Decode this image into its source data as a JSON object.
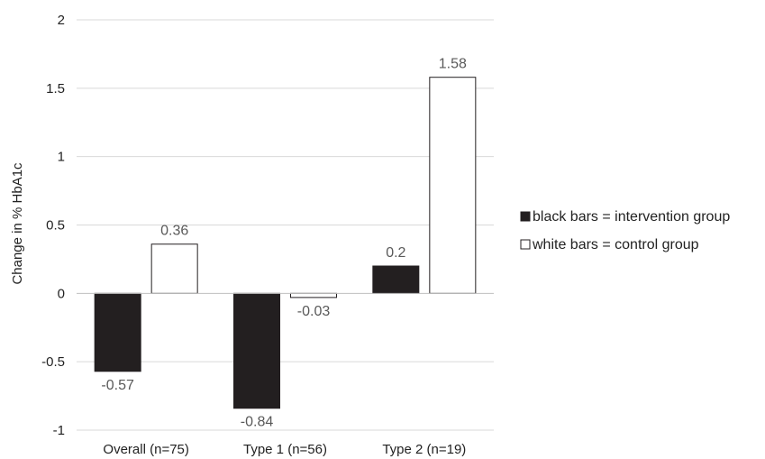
{
  "chart_data": {
    "type": "bar",
    "title": "",
    "xlabel": "",
    "ylabel": "Change in % HbA1c",
    "ylim": [
      -1,
      2
    ],
    "yticks": [
      2,
      1.5,
      1,
      0.5,
      0,
      -0.5,
      -1
    ],
    "ytick_labels": [
      "2",
      "1.5",
      "1",
      "0.5",
      "0",
      "-0.5",
      "-1"
    ],
    "grid": true,
    "legend_position": "right",
    "categories": [
      "Overall (n=75)",
      "Type 1 (n=56)",
      "Type 2 (n=19)"
    ],
    "series": [
      {
        "name": "black bars = intervention group",
        "values": [
          -0.57,
          -0.84,
          0.2
        ],
        "labels": [
          "-0.57",
          "-0.84",
          "0.2"
        ],
        "color": "#231f20"
      },
      {
        "name": "white bars = control group",
        "values": [
          0.36,
          -0.03,
          1.58
        ],
        "labels": [
          "0.36",
          "-0.03",
          "1.58"
        ],
        "color": "#ffffff"
      }
    ]
  }
}
